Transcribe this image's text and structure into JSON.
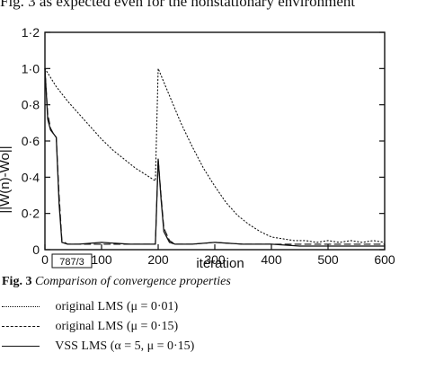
{
  "top_text": "Fig. 3 as expected even for the nonstationary environment",
  "figure_id": "787/3",
  "caption": {
    "label": "Fig. 3",
    "text": "Comparison of convergence properties"
  },
  "legend": [
    {
      "style": "dotted",
      "label": "original LMS (μ = 0·01)"
    },
    {
      "style": "dashed",
      "label": "original LMS (μ = 0·15)"
    },
    {
      "style": "solid",
      "label": "VSS LMS (α = 5, μ = 0·15)"
    }
  ],
  "chart_data": {
    "type": "line",
    "title": "",
    "xlabel": "iteration",
    "ylabel": "||W(n)-Wo||",
    "xlim": [
      0,
      600
    ],
    "ylim": [
      0,
      1.2
    ],
    "xticks": [
      0,
      100,
      200,
      300,
      400,
      500,
      600
    ],
    "xtick_labels": [
      "0",
      "100",
      "200",
      "300",
      "400",
      "500",
      "600"
    ],
    "yticks": [
      0,
      0.2,
      0.4,
      0.6,
      0.8,
      1.0,
      1.2
    ],
    "ytick_labels": [
      "0",
      "0·2",
      "0·4",
      "0·6",
      "0·8",
      "1·0",
      "1·2"
    ],
    "series": [
      {
        "name": "original LMS (μ = 0·01)",
        "style": "dotted",
        "x": [
          0,
          20,
          40,
          60,
          80,
          100,
          120,
          140,
          160,
          180,
          195,
          200,
          220,
          240,
          260,
          280,
          300,
          320,
          340,
          360,
          380,
          400,
          420,
          440,
          460,
          480,
          500,
          520,
          540,
          560,
          580,
          600
        ],
        "y": [
          1.0,
          0.9,
          0.82,
          0.75,
          0.68,
          0.61,
          0.55,
          0.5,
          0.45,
          0.41,
          0.38,
          1.0,
          0.85,
          0.7,
          0.57,
          0.45,
          0.35,
          0.26,
          0.19,
          0.14,
          0.1,
          0.07,
          0.06,
          0.05,
          0.05,
          0.04,
          0.05,
          0.04,
          0.05,
          0.04,
          0.05,
          0.04
        ]
      },
      {
        "name": "original LMS (μ = 0·15)",
        "style": "dashed",
        "x": [
          0,
          5,
          10,
          15,
          20,
          25,
          30,
          40,
          60,
          100,
          150,
          195,
          200,
          205,
          210,
          220,
          230,
          260,
          300,
          350,
          400,
          450,
          500,
          550,
          600
        ],
        "y": [
          1.0,
          0.75,
          0.67,
          0.64,
          0.62,
          0.3,
          0.05,
          0.03,
          0.03,
          0.03,
          0.03,
          0.03,
          0.5,
          0.3,
          0.12,
          0.05,
          0.03,
          0.03,
          0.04,
          0.03,
          0.03,
          0.03,
          0.03,
          0.03,
          0.03
        ]
      },
      {
        "name": "VSS LMS (α = 5, μ = 0·15)",
        "style": "solid",
        "x": [
          0,
          5,
          10,
          15,
          20,
          25,
          30,
          40,
          60,
          100,
          150,
          195,
          200,
          205,
          210,
          220,
          230,
          260,
          300,
          350,
          400,
          450,
          500,
          550,
          600
        ],
        "y": [
          1.0,
          0.72,
          0.66,
          0.64,
          0.62,
          0.25,
          0.04,
          0.03,
          0.03,
          0.04,
          0.03,
          0.03,
          0.5,
          0.28,
          0.1,
          0.04,
          0.03,
          0.03,
          0.04,
          0.03,
          0.03,
          0.02,
          0.02,
          0.02,
          0.02
        ]
      }
    ]
  }
}
